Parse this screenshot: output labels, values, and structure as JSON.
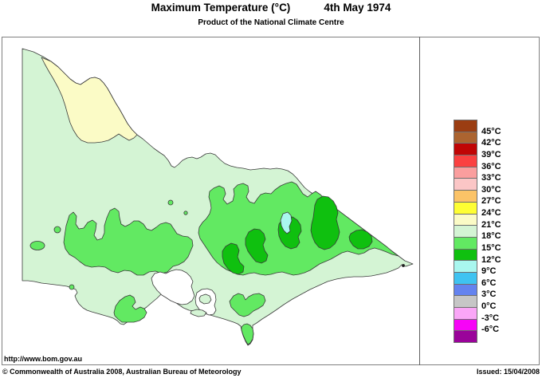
{
  "header": {
    "title": "Maximum Temperature (°C)",
    "date": "4th May 1974",
    "subtitle": "Product of the National Climate Centre"
  },
  "footer": {
    "url": "http://www.bom.gov.au",
    "copyright": "© Commonwealth of Australia 2008, Australian Bureau of Meteorology",
    "issued": "Issued: 15/04/2008"
  },
  "legend": {
    "labels": [
      "45°C",
      "42°C",
      "39°C",
      "36°C",
      "33°C",
      "30°C",
      "27°C",
      "24°C",
      "21°C",
      "18°C",
      "15°C",
      "12°C",
      "9°C",
      "6°C",
      "3°C",
      "0°C",
      "-3°C",
      "-6°C"
    ],
    "colors": [
      "#9B3D12",
      "#AC6430",
      "#C00505",
      "#FA4141",
      "#FA9E9E",
      "#FBC6C6",
      "#FBC367",
      "#FEFE33",
      "#FBFBC6",
      "#D4F4D4",
      "#62E962",
      "#0FC00F",
      "#A9F7EF",
      "#3FC3F1",
      "#6483EF",
      "#C6C6C6",
      "#FAA6F7",
      "#F704F7",
      "#9A039A"
    ]
  },
  "map": {
    "region": "Victoria",
    "sea_color": "#FFFFFF",
    "outline_color": "#3a3a3a",
    "bands_shown": [
      "21-24°C",
      "18-21°C",
      "15-18°C",
      "12-15°C",
      "9-12°C"
    ]
  }
}
